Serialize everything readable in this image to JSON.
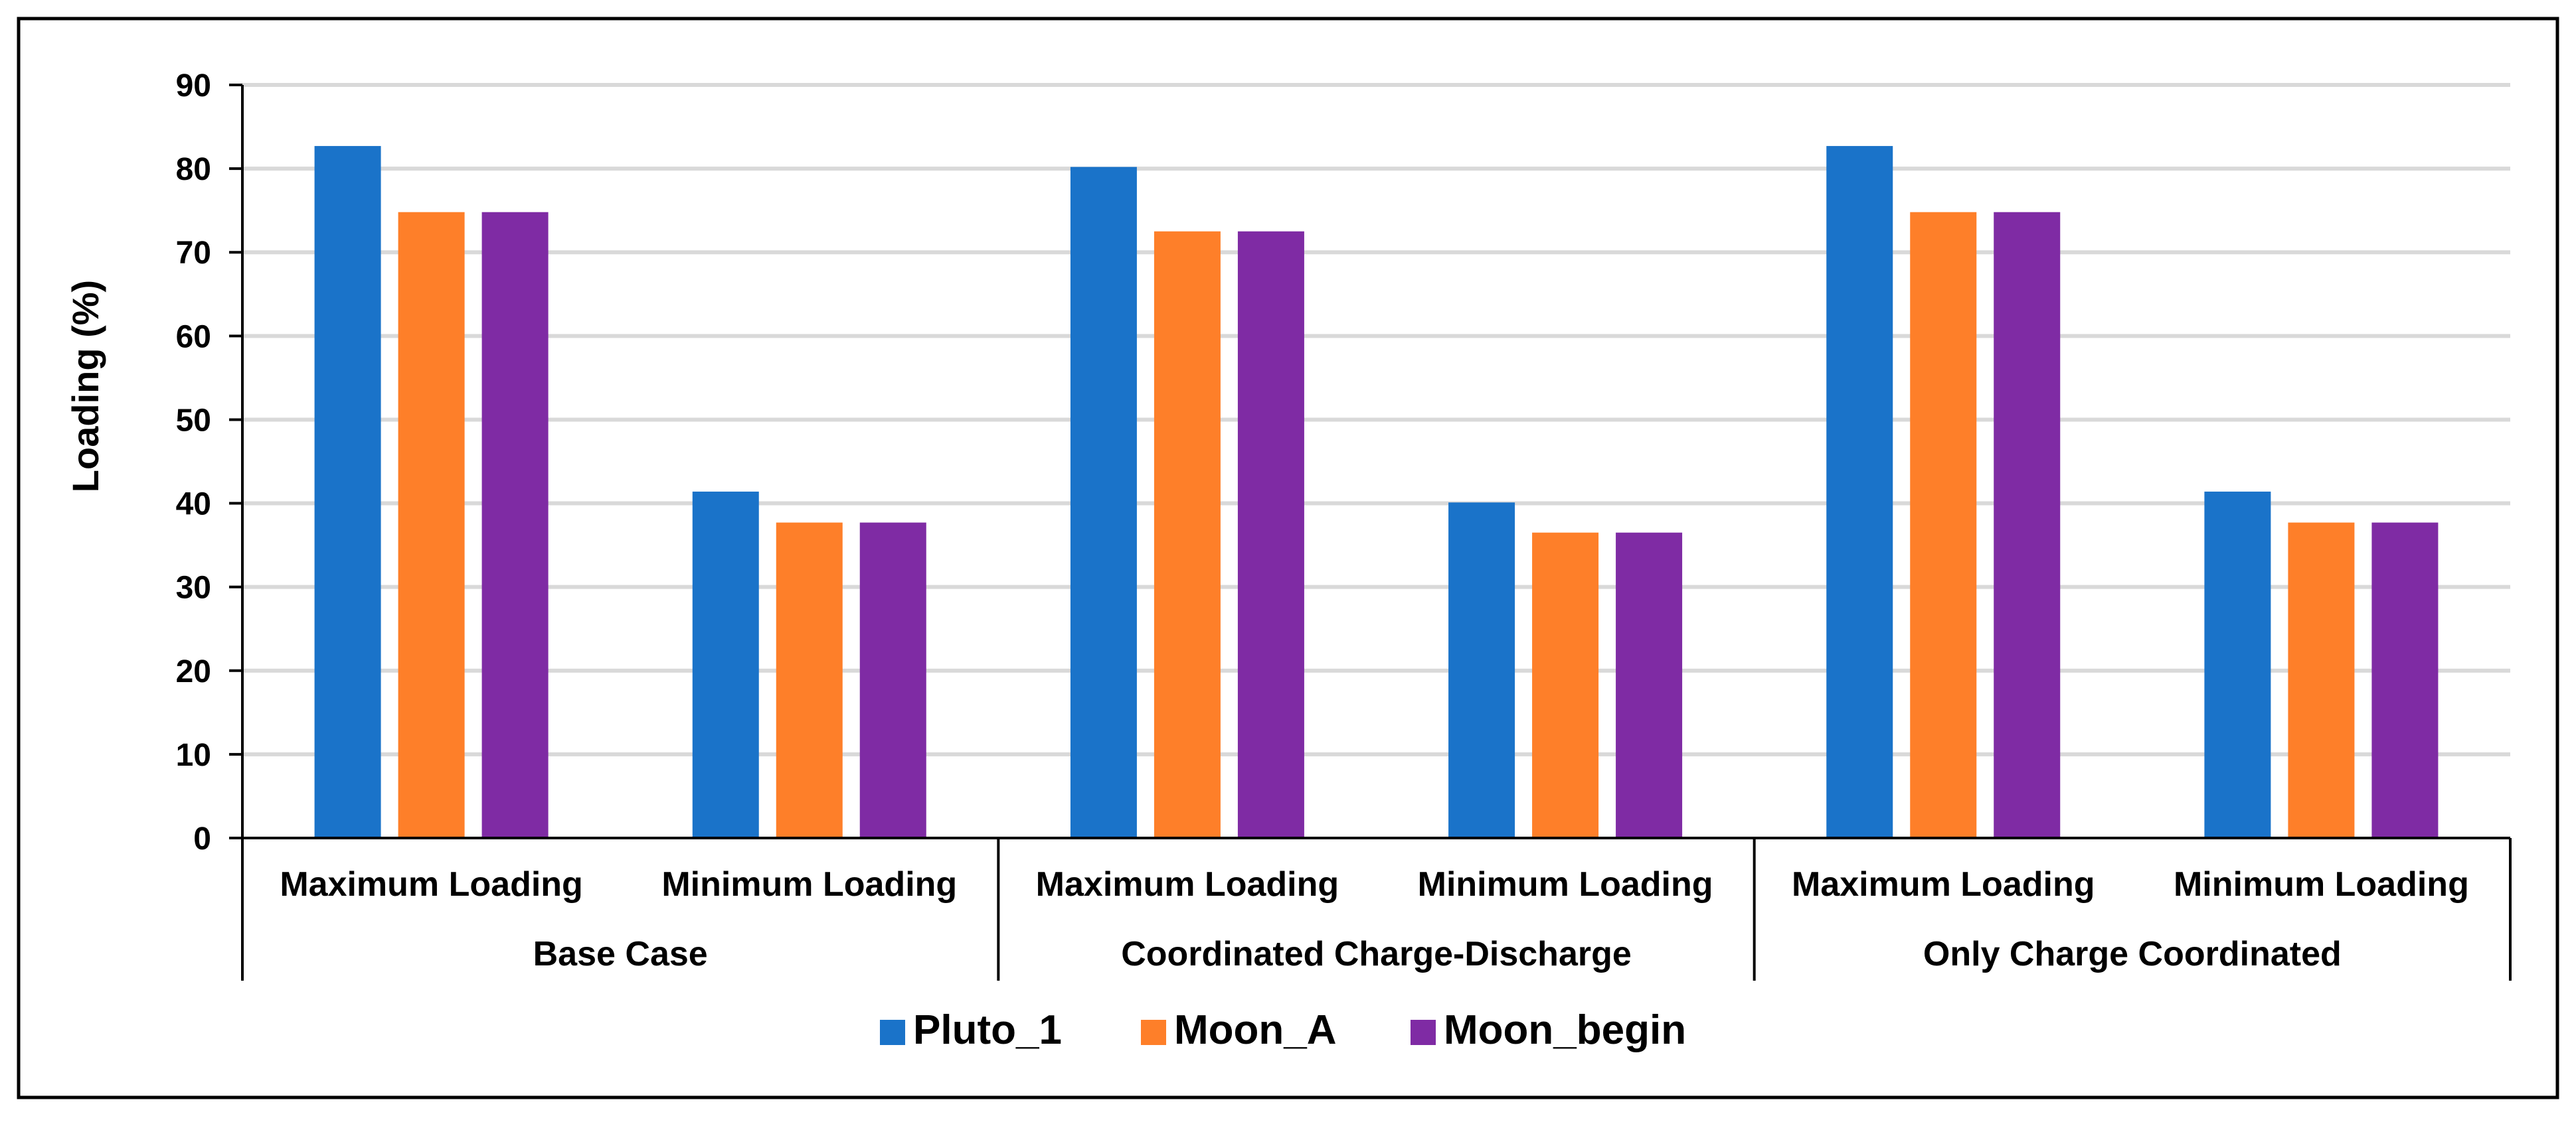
{
  "chart_data": {
    "type": "bar",
    "title": "",
    "xlabel": "",
    "ylabel": "Loading (%)",
    "ylim": [
      0,
      90
    ],
    "yticks": [
      0,
      10,
      20,
      30,
      40,
      50,
      60,
      70,
      80,
      90
    ],
    "grid": true,
    "legend_position": "bottom-center",
    "groups": [
      {
        "label": "Base Case",
        "categories": [
          "Maximum Loading",
          "Minimum Loading"
        ]
      },
      {
        "label": "Coordinated Charge-Discharge",
        "categories": [
          "Maximum Loading",
          "Minimum Loading"
        ]
      },
      {
        "label": "Only Charge Coordinated",
        "categories": [
          "Maximum Loading",
          "Minimum Loading"
        ]
      }
    ],
    "categories": [
      "Maximum Loading",
      "Minimum Loading",
      "Maximum Loading",
      "Minimum Loading",
      "Maximum Loading",
      "Minimum Loading"
    ],
    "series": [
      {
        "name": "Pluto_1",
        "color": "#1a73c9",
        "values": [
          82.7,
          41.4,
          80.2,
          40.1,
          82.7,
          41.4
        ]
      },
      {
        "name": "Moon_A",
        "color": "#fe7f29",
        "values": [
          74.8,
          37.7,
          72.5,
          36.5,
          74.8,
          37.7
        ]
      },
      {
        "name": "Moon_begin",
        "color": "#7f2ba4",
        "values": [
          74.8,
          37.7,
          72.5,
          36.5,
          74.8,
          37.7
        ]
      }
    ]
  }
}
